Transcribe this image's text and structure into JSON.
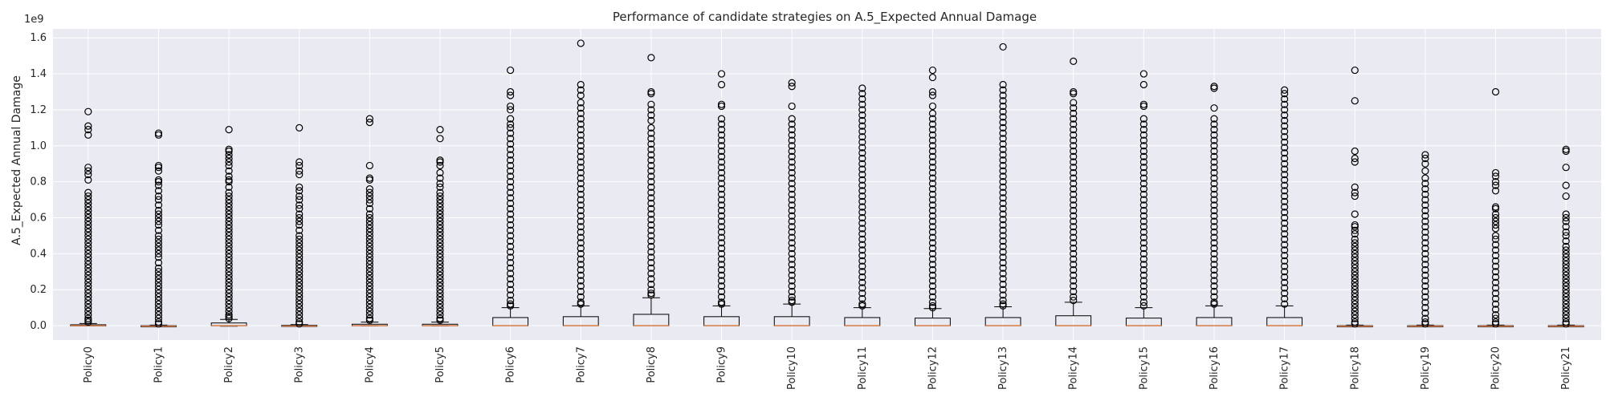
{
  "chart_data": {
    "type": "box",
    "title": "Performance of candidate strategies on A.5_Expected Annual Damage",
    "xlabel": "",
    "ylabel": "A.5_Expected Annual Damage",
    "y_offset_label": "1e9",
    "ylim": [
      -0.08,
      1.65
    ],
    "y_ticks": [
      "0.0",
      "0.2",
      "0.4",
      "0.6",
      "0.8",
      "1.0",
      "1.2",
      "1.4",
      "1.6"
    ],
    "y_tick_values": [
      0.0,
      0.2,
      0.4,
      0.6,
      0.8,
      1.0,
      1.2,
      1.4,
      1.6
    ],
    "grid": true,
    "colors": {
      "background": "#eaeaf2",
      "grid": "#ffffff",
      "median": "#dd8452",
      "box": "#000000"
    },
    "categories": [
      "Policy0",
      "Policy1",
      "Policy2",
      "Policy3",
      "Policy4",
      "Policy5",
      "Policy6",
      "Policy7",
      "Policy8",
      "Policy9",
      "Policy10",
      "Policy11",
      "Policy12",
      "Policy13",
      "Policy14",
      "Policy15",
      "Policy16",
      "Policy17",
      "Policy18",
      "Policy19",
      "Policy20",
      "Policy21"
    ],
    "boxes": [
      {
        "q1": 0.0,
        "median": 0.0,
        "q3": 0.005,
        "whisker_low": 0.0,
        "whisker_high": 0.012,
        "outliers": [
          1.19,
          1.11,
          1.09,
          1.06,
          0.88,
          0.86,
          0.84,
          0.81,
          0.74,
          0.72,
          0.7,
          0.68,
          0.66,
          0.64,
          0.62,
          0.6,
          0.58,
          0.56,
          0.54,
          0.52,
          0.5,
          0.48,
          0.46,
          0.44,
          0.42,
          0.4,
          0.38,
          0.36,
          0.34,
          0.32,
          0.3,
          0.28,
          0.26,
          0.24,
          0.22,
          0.2,
          0.18,
          0.16,
          0.14,
          0.12,
          0.1,
          0.08,
          0.06,
          0.04,
          0.03,
          0.02
        ]
      },
      {
        "q1": -0.003,
        "median": -0.003,
        "q3": 0.0,
        "whisker_low": -0.005,
        "whisker_high": 0.003,
        "outliers": [
          1.07,
          1.06,
          0.89,
          0.88,
          0.86,
          0.81,
          0.8,
          0.78,
          0.75,
          0.72,
          0.7,
          0.67,
          0.64,
          0.62,
          0.6,
          0.58,
          0.56,
          0.53,
          0.5,
          0.48,
          0.46,
          0.44,
          0.42,
          0.4,
          0.38,
          0.35,
          0.32,
          0.3,
          0.28,
          0.26,
          0.24,
          0.22,
          0.2,
          0.18,
          0.16,
          0.14,
          0.12,
          0.1,
          0.08,
          0.06,
          0.04,
          0.02,
          0.01
        ]
      },
      {
        "q1": 0.0,
        "median": 0.0,
        "q3": 0.015,
        "whisker_low": -0.003,
        "whisker_high": 0.035,
        "outliers": [
          1.09,
          0.98,
          0.97,
          0.95,
          0.93,
          0.91,
          0.89,
          0.86,
          0.83,
          0.81,
          0.8,
          0.77,
          0.74,
          0.72,
          0.7,
          0.68,
          0.66,
          0.64,
          0.62,
          0.6,
          0.58,
          0.56,
          0.54,
          0.52,
          0.5,
          0.48,
          0.46,
          0.44,
          0.42,
          0.4,
          0.38,
          0.36,
          0.34,
          0.32,
          0.3,
          0.28,
          0.26,
          0.24,
          0.22,
          0.2,
          0.18,
          0.16,
          0.14,
          0.12,
          0.1,
          0.08,
          0.06,
          0.05,
          0.04
        ]
      },
      {
        "q1": -0.002,
        "median": -0.002,
        "q3": 0.002,
        "whisker_low": -0.004,
        "whisker_high": 0.006,
        "outliers": [
          1.1,
          0.91,
          0.89,
          0.86,
          0.84,
          0.77,
          0.75,
          0.72,
          0.7,
          0.67,
          0.65,
          0.62,
          0.6,
          0.58,
          0.56,
          0.53,
          0.5,
          0.48,
          0.46,
          0.44,
          0.42,
          0.4,
          0.38,
          0.36,
          0.34,
          0.32,
          0.3,
          0.28,
          0.26,
          0.24,
          0.22,
          0.2,
          0.18,
          0.16,
          0.14,
          0.12,
          0.1,
          0.08,
          0.06,
          0.04,
          0.02,
          0.01
        ]
      },
      {
        "q1": 0.0,
        "median": 0.0,
        "q3": 0.008,
        "whisker_low": -0.002,
        "whisker_high": 0.02,
        "outliers": [
          1.15,
          1.13,
          0.89,
          0.82,
          0.81,
          0.76,
          0.74,
          0.72,
          0.7,
          0.68,
          0.65,
          0.62,
          0.6,
          0.58,
          0.56,
          0.54,
          0.52,
          0.5,
          0.48,
          0.46,
          0.44,
          0.42,
          0.4,
          0.38,
          0.36,
          0.34,
          0.32,
          0.3,
          0.28,
          0.26,
          0.24,
          0.22,
          0.2,
          0.18,
          0.16,
          0.14,
          0.12,
          0.1,
          0.08,
          0.06,
          0.04,
          0.03
        ]
      },
      {
        "q1": 0.0,
        "median": 0.0,
        "q3": 0.008,
        "whisker_low": -0.002,
        "whisker_high": 0.02,
        "outliers": [
          1.09,
          1.04,
          0.92,
          0.91,
          0.89,
          0.85,
          0.82,
          0.79,
          0.77,
          0.74,
          0.72,
          0.7,
          0.68,
          0.66,
          0.64,
          0.62,
          0.6,
          0.58,
          0.56,
          0.54,
          0.52,
          0.5,
          0.48,
          0.46,
          0.44,
          0.42,
          0.4,
          0.38,
          0.36,
          0.34,
          0.32,
          0.3,
          0.28,
          0.26,
          0.24,
          0.22,
          0.2,
          0.18,
          0.16,
          0.14,
          0.12,
          0.1,
          0.08,
          0.06,
          0.04,
          0.03
        ]
      },
      {
        "q1": 0.0,
        "median": 0.0,
        "q3": 0.045,
        "whisker_low": 0.0,
        "whisker_high": 0.1,
        "outliers": [
          1.42,
          1.3,
          1.28,
          1.22,
          1.2,
          1.15,
          1.12,
          1.1,
          1.07,
          1.04,
          1.01,
          0.98,
          0.95,
          0.92,
          0.89,
          0.86,
          0.83,
          0.8,
          0.77,
          0.74,
          0.71,
          0.68,
          0.65,
          0.62,
          0.59,
          0.56,
          0.53,
          0.5,
          0.47,
          0.44,
          0.41,
          0.38,
          0.35,
          0.32,
          0.29,
          0.26,
          0.23,
          0.2,
          0.17,
          0.14,
          0.12,
          0.11
        ]
      },
      {
        "q1": 0.0,
        "median": 0.0,
        "q3": 0.05,
        "whisker_low": 0.0,
        "whisker_high": 0.11,
        "outliers": [
          1.57,
          1.34,
          1.31,
          1.28,
          1.24,
          1.21,
          1.18,
          1.15,
          1.12,
          1.09,
          1.06,
          1.03,
          1.0,
          0.97,
          0.94,
          0.91,
          0.88,
          0.85,
          0.82,
          0.79,
          0.76,
          0.73,
          0.7,
          0.67,
          0.64,
          0.61,
          0.58,
          0.55,
          0.52,
          0.49,
          0.46,
          0.43,
          0.4,
          0.37,
          0.34,
          0.31,
          0.28,
          0.25,
          0.22,
          0.19,
          0.16,
          0.13,
          0.12
        ]
      },
      {
        "q1": 0.0,
        "median": 0.0,
        "q3": 0.063,
        "whisker_low": 0.0,
        "whisker_high": 0.155,
        "outliers": [
          1.49,
          1.3,
          1.29,
          1.23,
          1.2,
          1.17,
          1.14,
          1.1,
          1.07,
          1.04,
          1.01,
          0.98,
          0.95,
          0.92,
          0.89,
          0.86,
          0.83,
          0.8,
          0.77,
          0.74,
          0.71,
          0.68,
          0.65,
          0.62,
          0.59,
          0.56,
          0.53,
          0.5,
          0.47,
          0.44,
          0.41,
          0.38,
          0.35,
          0.32,
          0.29,
          0.26,
          0.23,
          0.2,
          0.18,
          0.17
        ]
      },
      {
        "q1": 0.0,
        "median": 0.0,
        "q3": 0.05,
        "whisker_low": 0.0,
        "whisker_high": 0.11,
        "outliers": [
          1.4,
          1.34,
          1.23,
          1.22,
          1.15,
          1.12,
          1.09,
          1.06,
          1.03,
          1.0,
          0.97,
          0.94,
          0.91,
          0.88,
          0.85,
          0.82,
          0.79,
          0.76,
          0.73,
          0.7,
          0.67,
          0.64,
          0.61,
          0.58,
          0.55,
          0.52,
          0.49,
          0.46,
          0.43,
          0.4,
          0.37,
          0.34,
          0.31,
          0.28,
          0.25,
          0.22,
          0.19,
          0.16,
          0.13,
          0.12
        ]
      },
      {
        "q1": 0.0,
        "median": 0.0,
        "q3": 0.05,
        "whisker_low": 0.0,
        "whisker_high": 0.12,
        "outliers": [
          1.35,
          1.33,
          1.22,
          1.15,
          1.12,
          1.09,
          1.06,
          1.03,
          1.0,
          0.97,
          0.94,
          0.91,
          0.88,
          0.85,
          0.82,
          0.79,
          0.76,
          0.73,
          0.7,
          0.67,
          0.64,
          0.61,
          0.58,
          0.55,
          0.52,
          0.49,
          0.46,
          0.43,
          0.4,
          0.37,
          0.34,
          0.31,
          0.28,
          0.25,
          0.22,
          0.19,
          0.16,
          0.14,
          0.13
        ]
      },
      {
        "q1": 0.0,
        "median": 0.0,
        "q3": 0.045,
        "whisker_low": 0.0,
        "whisker_high": 0.1,
        "outliers": [
          1.32,
          1.29,
          1.26,
          1.23,
          1.2,
          1.17,
          1.14,
          1.11,
          1.08,
          1.05,
          1.02,
          0.99,
          0.96,
          0.93,
          0.9,
          0.87,
          0.84,
          0.81,
          0.78,
          0.75,
          0.72,
          0.69,
          0.66,
          0.63,
          0.6,
          0.57,
          0.54,
          0.51,
          0.48,
          0.45,
          0.42,
          0.39,
          0.36,
          0.33,
          0.3,
          0.27,
          0.24,
          0.21,
          0.18,
          0.15,
          0.12,
          0.11
        ]
      },
      {
        "q1": 0.0,
        "median": 0.0,
        "q3": 0.042,
        "whisker_low": 0.0,
        "whisker_high": 0.095,
        "outliers": [
          1.42,
          1.38,
          1.3,
          1.28,
          1.22,
          1.18,
          1.15,
          1.12,
          1.09,
          1.06,
          1.03,
          1.0,
          0.97,
          0.94,
          0.91,
          0.88,
          0.85,
          0.82,
          0.79,
          0.76,
          0.73,
          0.7,
          0.67,
          0.64,
          0.61,
          0.58,
          0.55,
          0.52,
          0.49,
          0.46,
          0.43,
          0.4,
          0.37,
          0.34,
          0.31,
          0.28,
          0.25,
          0.22,
          0.19,
          0.16,
          0.13,
          0.11,
          0.1
        ]
      },
      {
        "q1": 0.0,
        "median": 0.0,
        "q3": 0.045,
        "whisker_low": 0.0,
        "whisker_high": 0.105,
        "outliers": [
          1.55,
          1.34,
          1.31,
          1.28,
          1.25,
          1.22,
          1.19,
          1.16,
          1.13,
          1.1,
          1.07,
          1.04,
          1.01,
          0.98,
          0.95,
          0.92,
          0.89,
          0.86,
          0.83,
          0.8,
          0.77,
          0.74,
          0.71,
          0.68,
          0.65,
          0.62,
          0.59,
          0.56,
          0.53,
          0.5,
          0.47,
          0.44,
          0.41,
          0.38,
          0.35,
          0.32,
          0.29,
          0.26,
          0.23,
          0.2,
          0.17,
          0.14,
          0.12,
          0.11
        ]
      },
      {
        "q1": 0.0,
        "median": 0.0,
        "q3": 0.055,
        "whisker_low": 0.0,
        "whisker_high": 0.13,
        "outliers": [
          1.47,
          1.3,
          1.29,
          1.24,
          1.21,
          1.18,
          1.15,
          1.12,
          1.09,
          1.06,
          1.03,
          1.0,
          0.97,
          0.94,
          0.91,
          0.88,
          0.85,
          0.82,
          0.79,
          0.76,
          0.73,
          0.7,
          0.67,
          0.64,
          0.61,
          0.58,
          0.55,
          0.52,
          0.49,
          0.46,
          0.43,
          0.4,
          0.37,
          0.34,
          0.31,
          0.28,
          0.25,
          0.22,
          0.19,
          0.16,
          0.14
        ]
      },
      {
        "q1": 0.0,
        "median": 0.0,
        "q3": 0.042,
        "whisker_low": 0.0,
        "whisker_high": 0.1,
        "outliers": [
          1.4,
          1.34,
          1.23,
          1.22,
          1.15,
          1.12,
          1.09,
          1.06,
          1.03,
          1.0,
          0.97,
          0.94,
          0.91,
          0.88,
          0.85,
          0.82,
          0.79,
          0.76,
          0.73,
          0.7,
          0.67,
          0.64,
          0.61,
          0.58,
          0.55,
          0.52,
          0.49,
          0.46,
          0.43,
          0.4,
          0.37,
          0.34,
          0.31,
          0.28,
          0.25,
          0.22,
          0.19,
          0.16,
          0.13,
          0.11
        ]
      },
      {
        "q1": 0.0,
        "median": 0.0,
        "q3": 0.045,
        "whisker_low": 0.0,
        "whisker_high": 0.11,
        "outliers": [
          1.33,
          1.32,
          1.21,
          1.15,
          1.12,
          1.09,
          1.06,
          1.03,
          1.0,
          0.97,
          0.94,
          0.91,
          0.88,
          0.85,
          0.82,
          0.79,
          0.76,
          0.73,
          0.7,
          0.67,
          0.64,
          0.61,
          0.58,
          0.55,
          0.52,
          0.49,
          0.46,
          0.43,
          0.4,
          0.37,
          0.34,
          0.31,
          0.28,
          0.25,
          0.22,
          0.19,
          0.16,
          0.13,
          0.12
        ]
      },
      {
        "q1": 0.0,
        "median": 0.0,
        "q3": 0.045,
        "whisker_low": 0.0,
        "whisker_high": 0.11,
        "outliers": [
          1.31,
          1.29,
          1.26,
          1.23,
          1.2,
          1.17,
          1.14,
          1.11,
          1.08,
          1.05,
          1.02,
          0.99,
          0.96,
          0.93,
          0.9,
          0.87,
          0.84,
          0.81,
          0.78,
          0.75,
          0.72,
          0.69,
          0.66,
          0.63,
          0.6,
          0.57,
          0.54,
          0.51,
          0.48,
          0.45,
          0.42,
          0.39,
          0.36,
          0.33,
          0.3,
          0.27,
          0.24,
          0.21,
          0.18,
          0.15,
          0.12
        ]
      },
      {
        "q1": -0.003,
        "median": -0.003,
        "q3": 0.0,
        "whisker_low": -0.005,
        "whisker_high": 0.003,
        "outliers": [
          1.42,
          1.25,
          0.97,
          0.93,
          0.91,
          0.77,
          0.74,
          0.72,
          0.62,
          0.56,
          0.55,
          0.53,
          0.51,
          0.48,
          0.46,
          0.44,
          0.42,
          0.4,
          0.38,
          0.36,
          0.34,
          0.32,
          0.3,
          0.28,
          0.26,
          0.24,
          0.22,
          0.2,
          0.18,
          0.16,
          0.14,
          0.12,
          0.1,
          0.08,
          0.06,
          0.04,
          0.02,
          0.01
        ]
      },
      {
        "q1": -0.003,
        "median": -0.003,
        "q3": 0.0,
        "whisker_low": -0.005,
        "whisker_high": 0.003,
        "outliers": [
          0.95,
          0.93,
          0.9,
          0.86,
          0.82,
          0.79,
          0.76,
          0.73,
          0.7,
          0.67,
          0.64,
          0.61,
          0.58,
          0.55,
          0.52,
          0.49,
          0.46,
          0.43,
          0.4,
          0.37,
          0.34,
          0.31,
          0.28,
          0.25,
          0.22,
          0.19,
          0.16,
          0.13,
          0.1,
          0.07,
          0.04,
          0.02,
          0.01
        ]
      },
      {
        "q1": -0.003,
        "median": -0.003,
        "q3": 0.0,
        "whisker_low": -0.005,
        "whisker_high": 0.003,
        "outliers": [
          1.3,
          0.85,
          0.83,
          0.8,
          0.78,
          0.75,
          0.66,
          0.65,
          0.62,
          0.6,
          0.58,
          0.56,
          0.54,
          0.5,
          0.48,
          0.45,
          0.42,
          0.39,
          0.36,
          0.33,
          0.3,
          0.27,
          0.24,
          0.21,
          0.18,
          0.15,
          0.12,
          0.09,
          0.06,
          0.04,
          0.02,
          0.01
        ]
      },
      {
        "q1": -0.003,
        "median": -0.003,
        "q3": 0.0,
        "whisker_low": -0.005,
        "whisker_high": 0.003,
        "outliers": [
          0.98,
          0.97,
          0.88,
          0.78,
          0.72,
          0.62,
          0.6,
          0.58,
          0.55,
          0.52,
          0.5,
          0.47,
          0.44,
          0.42,
          0.4,
          0.38,
          0.36,
          0.34,
          0.32,
          0.3,
          0.28,
          0.26,
          0.24,
          0.22,
          0.2,
          0.18,
          0.16,
          0.14,
          0.12,
          0.1,
          0.08,
          0.06,
          0.04,
          0.02,
          0.01
        ]
      }
    ]
  }
}
